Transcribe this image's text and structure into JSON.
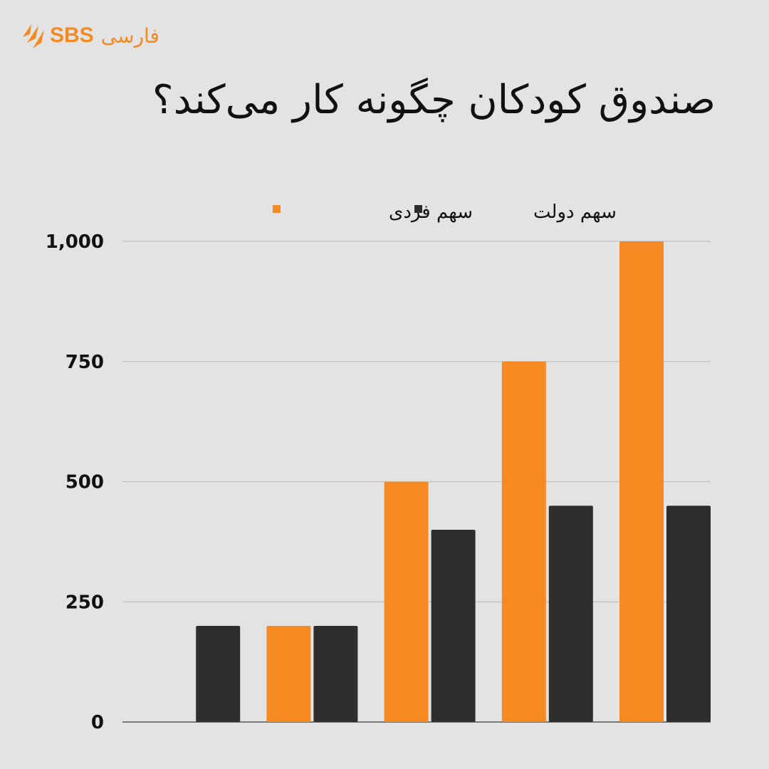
{
  "brand": {
    "logo_text": "SBS",
    "language_label": "فارسی",
    "accent_color": "#f58a22"
  },
  "title": "صندوق کودکان چگونه کار می‌کند؟",
  "chart_data": {
    "type": "bar",
    "title": "صندوق کودکان چگونه کار می‌کند؟",
    "categories": [
      "",
      "",
      "",
      "",
      ""
    ],
    "series": [
      {
        "name": "سهم فردی",
        "color": "#f58a22",
        "values": [
          0,
          200,
          500,
          750,
          1000
        ]
      },
      {
        "name": "سهم دولت",
        "color": "#2e2e2e",
        "values": [
          200,
          200,
          400,
          450,
          450
        ]
      }
    ],
    "ylim": [
      0,
      1000
    ],
    "yticks": [
      0,
      250,
      500,
      750,
      1000
    ],
    "ytick_labels": [
      "0",
      "250",
      "500",
      "750",
      "1,000"
    ],
    "grid": true,
    "legend_position": "top-center",
    "xlabel": "",
    "ylabel": ""
  }
}
